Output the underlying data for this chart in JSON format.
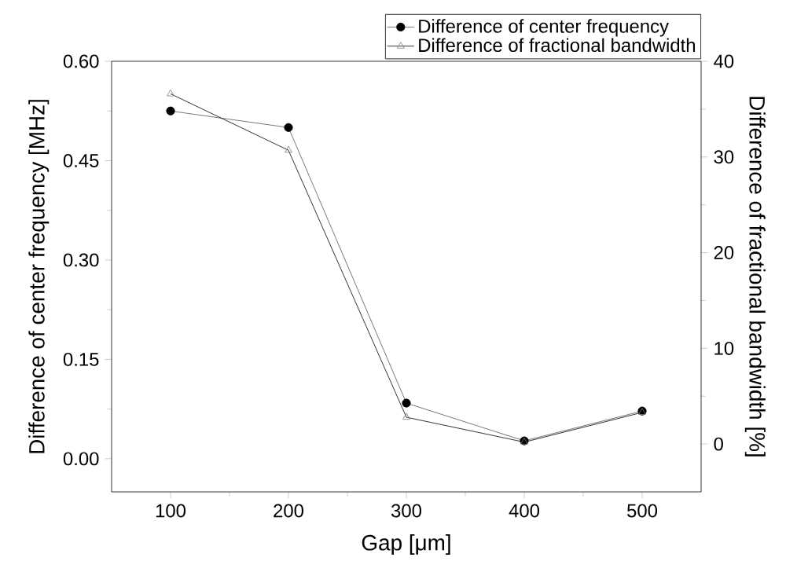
{
  "chart_data": {
    "type": "line",
    "xlabel": "Gap [μm]",
    "ylabel": "Difference of center frequency [MHz]",
    "y2label": "Difference of fractional bandwidth [%]",
    "x": [
      100,
      200,
      300,
      400,
      500
    ],
    "series": [
      {
        "name": "Difference of center frequency",
        "color": "#555555",
        "marker": "circle",
        "values": [
          0.525,
          0.5,
          0.084,
          0.027,
          0.072
        ]
      },
      {
        "name": "Difference of fractional bandwidth",
        "color": "#000000",
        "marker": "triangle",
        "axis": "y2",
        "values": [
          36.6,
          30.7,
          2.8,
          0.2,
          3.3
        ]
      }
    ],
    "xlim": [
      50,
      550
    ],
    "xticks": [
      100,
      200,
      300,
      400,
      500
    ],
    "ylim": [
      -0.05,
      0.6
    ],
    "yticks": [
      {
        "value": 0,
        "label": "0.00"
      },
      {
        "value": 0.15,
        "label": "0.15"
      },
      {
        "value": 0.3,
        "label": "0.30"
      },
      {
        "value": 0.45,
        "label": "0.45"
      },
      {
        "value": 0.6,
        "label": "0.60"
      }
    ],
    "y2lim": [
      -5,
      40
    ],
    "y2ticks": [
      0,
      10,
      20,
      30,
      40
    ],
    "legend": "top right",
    "grid": false,
    "line_style": "solid"
  }
}
